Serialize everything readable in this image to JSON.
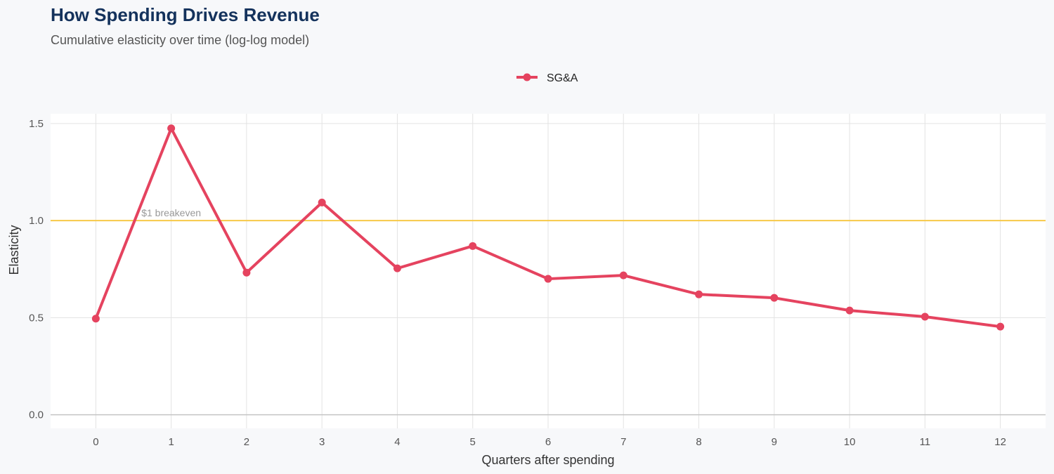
{
  "header": {
    "title": "How Spending Drives Revenue",
    "subtitle": "Cumulative elasticity over time (log-log model)"
  },
  "chart_data": {
    "type": "line",
    "title": "How Spending Drives Revenue",
    "subtitle": "Cumulative elasticity over time (log-log model)",
    "xlabel": "Quarters after spending",
    "ylabel": "Elasticity",
    "x": [
      0,
      1,
      2,
      3,
      4,
      5,
      6,
      7,
      8,
      9,
      10,
      11,
      12
    ],
    "xticks": [
      "0",
      "1",
      "2",
      "3",
      "4",
      "5",
      "6",
      "7",
      "8",
      "9",
      "10",
      "11",
      "12"
    ],
    "yticks": [
      "0.0",
      "0.5",
      "1.0",
      "1.5"
    ],
    "ylim": [
      -0.07,
      1.55
    ],
    "xlim": [
      -0.6,
      12.6
    ],
    "grid": true,
    "legend_placement": "top",
    "series": [
      {
        "name": "SG&A",
        "color": "#e5435f",
        "values": [
          0.495,
          1.475,
          0.732,
          1.093,
          0.754,
          0.869,
          0.7,
          0.718,
          0.62,
          0.602,
          0.537,
          0.505,
          0.454
        ]
      }
    ],
    "reference_line": {
      "y": 1.0,
      "label": "$1 breakeven",
      "color": "#f7c948"
    }
  }
}
